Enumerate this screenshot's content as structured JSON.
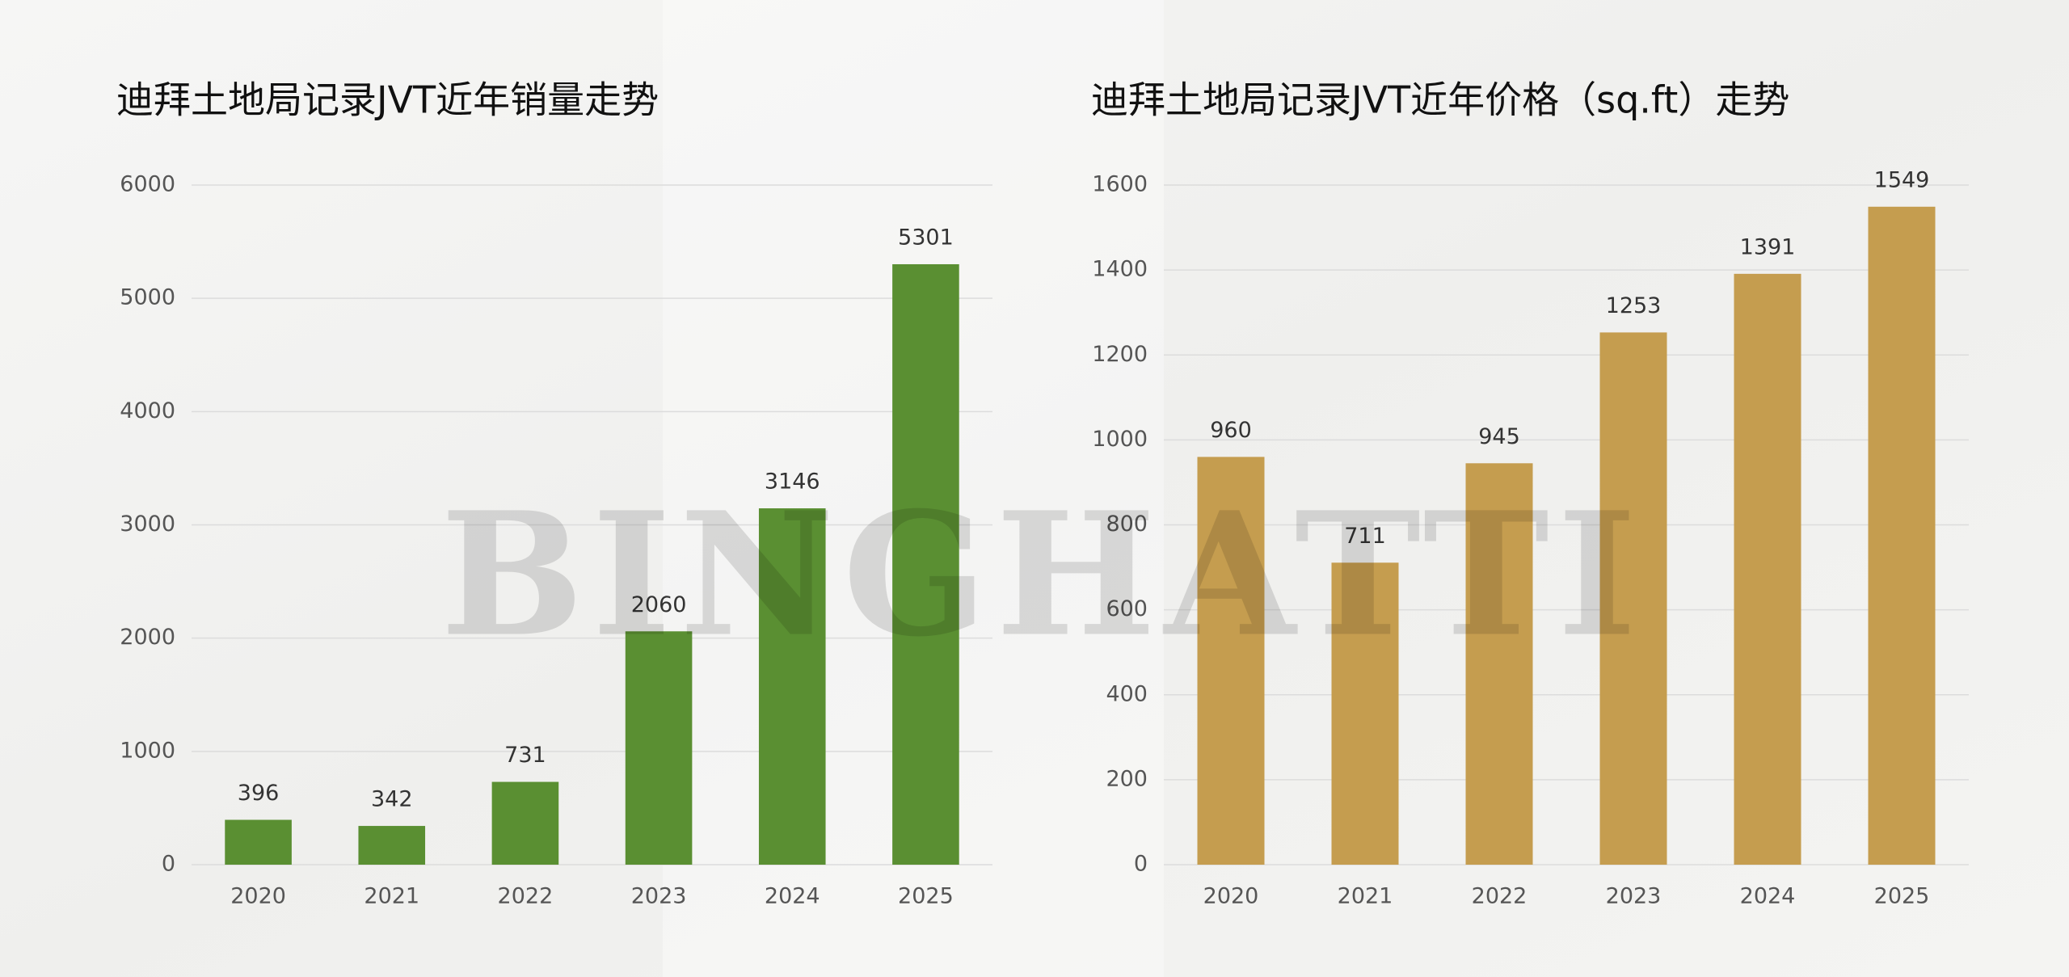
{
  "watermark": "BINGHATTI",
  "chart_data": [
    {
      "type": "bar",
      "title": "迪拜土地局记录JVT近年销量走势",
      "categories": [
        "2020",
        "2021",
        "2022",
        "2023",
        "2024",
        "2025"
      ],
      "values": [
        396,
        342,
        731,
        2060,
        3146,
        5301
      ],
      "color": "#5a8f32",
      "ylim": [
        0,
        6000
      ],
      "yticks": [
        0,
        1000,
        2000,
        3000,
        4000,
        5000,
        6000
      ],
      "grid": true
    },
    {
      "type": "bar",
      "title": "迪拜土地局记录JVT近年价格（sq.ft）走势",
      "categories": [
        "2020",
        "2021",
        "2022",
        "2023",
        "2024",
        "2025"
      ],
      "values": [
        960,
        711,
        945,
        1253,
        1391,
        1549
      ],
      "color": "#c59d4f",
      "ylim": [
        0,
        1600
      ],
      "yticks": [
        0,
        200,
        400,
        600,
        800,
        1000,
        1200,
        1400,
        1600
      ],
      "grid": true
    }
  ]
}
